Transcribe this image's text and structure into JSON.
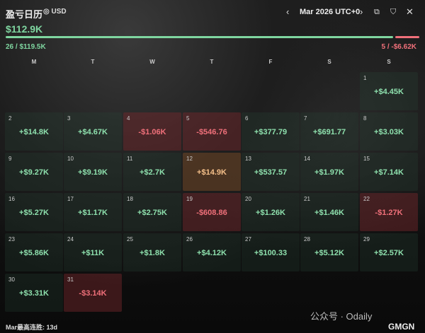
{
  "header": {
    "title": "盈亏日历",
    "currency": "USD",
    "month": "Mar 2026 UTC+0"
  },
  "summary": {
    "total": "$112.9K",
    "win": "26 / $119.5K",
    "loss": "5 / -$6.62K",
    "win_ratio": 0.94,
    "colors": {
      "win": "#7fd6a0",
      "loss": "#f0707a"
    }
  },
  "weekdays": [
    "M",
    "T",
    "W",
    "T",
    "F",
    "S",
    "S"
  ],
  "days": [
    {
      "d": "1",
      "v": "+$4.45K",
      "t": "pos"
    },
    {
      "d": "2",
      "v": "+$14.8K",
      "t": "pos"
    },
    {
      "d": "3",
      "v": "+$4.67K",
      "t": "pos"
    },
    {
      "d": "4",
      "v": "-$1.06K",
      "t": "neg"
    },
    {
      "d": "5",
      "v": "-$546.76",
      "t": "neg"
    },
    {
      "d": "6",
      "v": "+$377.79",
      "t": "pos"
    },
    {
      "d": "7",
      "v": "+$691.77",
      "t": "pos"
    },
    {
      "d": "8",
      "v": "+$3.03K",
      "t": "pos"
    },
    {
      "d": "9",
      "v": "+$9.27K",
      "t": "pos"
    },
    {
      "d": "10",
      "v": "+$9.19K",
      "t": "pos"
    },
    {
      "d": "11",
      "v": "+$2.7K",
      "t": "pos"
    },
    {
      "d": "12",
      "v": "+$14.9K",
      "t": "mid"
    },
    {
      "d": "13",
      "v": "+$537.57",
      "t": "pos"
    },
    {
      "d": "14",
      "v": "+$1.97K",
      "t": "pos"
    },
    {
      "d": "15",
      "v": "+$7.14K",
      "t": "pos"
    },
    {
      "d": "16",
      "v": "+$5.27K",
      "t": "pos"
    },
    {
      "d": "17",
      "v": "+$1.17K",
      "t": "pos"
    },
    {
      "d": "18",
      "v": "+$2.75K",
      "t": "pos"
    },
    {
      "d": "19",
      "v": "-$608.86",
      "t": "neg"
    },
    {
      "d": "20",
      "v": "+$1.26K",
      "t": "pos"
    },
    {
      "d": "21",
      "v": "+$1.46K",
      "t": "pos"
    },
    {
      "d": "22",
      "v": "-$1.27K",
      "t": "neg"
    },
    {
      "d": "23",
      "v": "+$5.86K",
      "t": "pos"
    },
    {
      "d": "24",
      "v": "+$11K",
      "t": "pos"
    },
    {
      "d": "25",
      "v": "+$1.8K",
      "t": "pos"
    },
    {
      "d": "26",
      "v": "+$4.12K",
      "t": "pos"
    },
    {
      "d": "27",
      "v": "+$100.33",
      "t": "pos"
    },
    {
      "d": "28",
      "v": "+$5.12K",
      "t": "pos"
    },
    {
      "d": "29",
      "v": "+$2.57K",
      "t": "pos"
    },
    {
      "d": "30",
      "v": "+$3.31K",
      "t": "pos"
    },
    {
      "d": "31",
      "v": "-$3.14K",
      "t": "neg"
    }
  ],
  "footer": {
    "streak": "Mar最高连胜: 13d",
    "watermark": "公众号 · Odaily",
    "brand": "GMGN"
  }
}
